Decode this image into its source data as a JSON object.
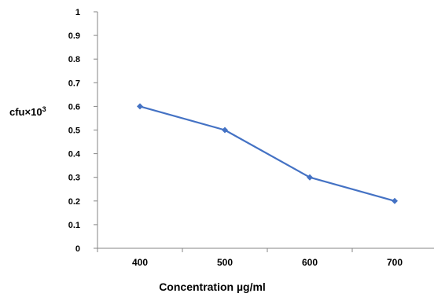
{
  "chart_data": {
    "type": "line",
    "title": "",
    "xlabel": "Concentration µg/ml",
    "ylabel": "cfu×10",
    "ylabel_exponent": "3",
    "x": [
      400,
      500,
      600,
      700
    ],
    "x_tick_labels": [
      "400",
      "500",
      "600",
      "700"
    ],
    "y_ticks": [
      "0",
      "0.1",
      "0.2",
      "0.3",
      "0.4",
      "0.5",
      "0.6",
      "0.7",
      "0.8",
      "0.9",
      "1"
    ],
    "ylim": [
      0,
      1
    ],
    "series": [
      {
        "values": [
          0.6,
          0.5,
          0.3,
          0.2
        ],
        "color": "#4472c4",
        "marker": "diamond"
      }
    ],
    "grid": false,
    "legend": "none"
  }
}
